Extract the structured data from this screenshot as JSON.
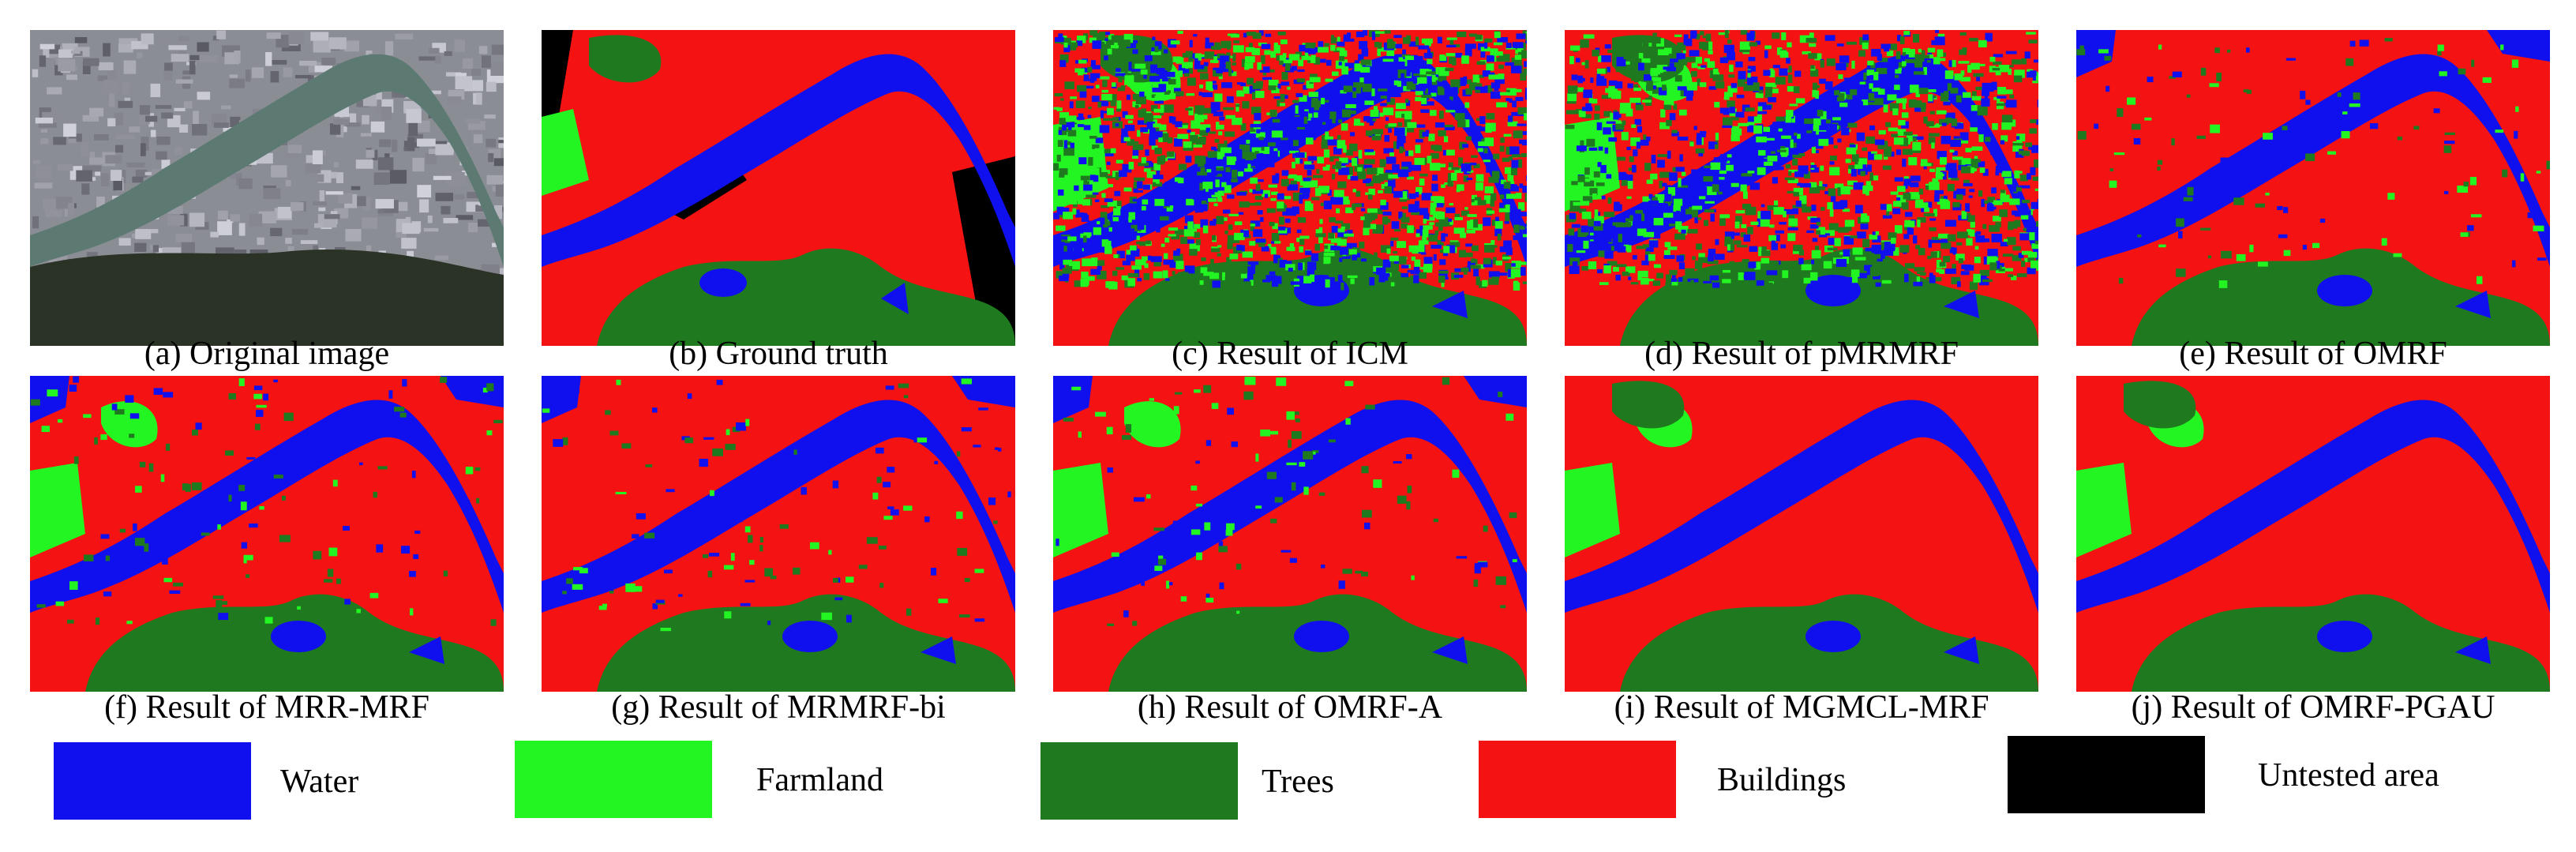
{
  "colors": {
    "water": "#1010ee",
    "farmland": "#22f522",
    "trees": "#1f7a1f",
    "buildings": "#f51212",
    "untested": "#000000"
  },
  "panels": [
    {
      "id": "a",
      "caption": "(a) Original image",
      "kind": "photo"
    },
    {
      "id": "b",
      "caption": "(b) Ground truth",
      "kind": "gt"
    },
    {
      "id": "c",
      "caption": "(c) Result of ICM",
      "kind": "noisy"
    },
    {
      "id": "d",
      "caption": "(d) Result of pMRMRF",
      "kind": "noisy2"
    },
    {
      "id": "e",
      "caption": "(e) Result of OMRF",
      "kind": "seg"
    },
    {
      "id": "f",
      "caption": "(f) Result of MRR-MRF",
      "kind": "seg"
    },
    {
      "id": "g",
      "caption": "(g) Result of MRMRF-bi",
      "kind": "seg"
    },
    {
      "id": "h",
      "caption": "(h) Result of OMRF-A",
      "kind": "seg"
    },
    {
      "id": "i",
      "caption": "(i) Result of MGMCL-MRF",
      "kind": "segsmooth"
    },
    {
      "id": "j",
      "caption": "(j) Result of OMRF-PGAU",
      "kind": "segsmooth"
    }
  ],
  "legend": [
    {
      "label": "Water",
      "color_key": "water"
    },
    {
      "label": "Farmland",
      "color_key": "farmland"
    },
    {
      "label": "Trees",
      "color_key": "trees"
    },
    {
      "label": "Buildings",
      "color_key": "buildings"
    },
    {
      "label": "Untested area",
      "color_key": "untested"
    }
  ]
}
